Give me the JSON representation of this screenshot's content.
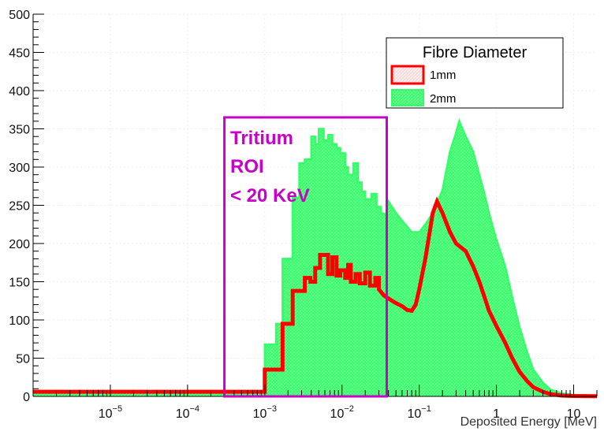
{
  "chart_data": {
    "type": "histogram",
    "title": "",
    "xlabel": "Deposited Energy [MeV]",
    "ylabel": "",
    "x_scale": "log",
    "xlim": [
      1e-06,
      20
    ],
    "ylim": [
      0,
      500
    ],
    "grid": true,
    "x_tick_labels": [
      {
        "value": 1e-05,
        "base": "10",
        "exp": "−5"
      },
      {
        "value": 0.0001,
        "base": "10",
        "exp": "−4"
      },
      {
        "value": 0.001,
        "base": "10",
        "exp": "−3"
      },
      {
        "value": 0.01,
        "base": "10",
        "exp": "−2"
      },
      {
        "value": 0.1,
        "base": "10",
        "exp": "−1"
      },
      {
        "value": 1,
        "base": "1",
        "exp": ""
      },
      {
        "value": 10,
        "base": "10",
        "exp": ""
      }
    ],
    "y_ticks": [
      0,
      50,
      100,
      150,
      200,
      250,
      300,
      350,
      400,
      450,
      500
    ],
    "legend": {
      "title": "Fibre Diameter",
      "position": "top-right",
      "entries": [
        "1mm",
        "2mm"
      ]
    },
    "series": [
      {
        "name": "1mm",
        "color": "#ff0000",
        "style": "thick line band",
        "points": [
          [
            1e-06,
            6
          ],
          [
            0.001,
            6
          ],
          [
            0.001,
            35
          ],
          [
            0.0017,
            35
          ],
          [
            0.0017,
            95
          ],
          [
            0.0023,
            95
          ],
          [
            0.0023,
            138
          ],
          [
            0.0033,
            138
          ],
          [
            0.0033,
            155
          ],
          [
            0.0039,
            155
          ],
          [
            0.0039,
            150
          ],
          [
            0.0045,
            150
          ],
          [
            0.0045,
            168
          ],
          [
            0.0052,
            168
          ],
          [
            0.0052,
            185
          ],
          [
            0.0066,
            185
          ],
          [
            0.0066,
            160
          ],
          [
            0.0075,
            160
          ],
          [
            0.0075,
            182
          ],
          [
            0.0085,
            182
          ],
          [
            0.0085,
            158
          ],
          [
            0.0095,
            158
          ],
          [
            0.0095,
            165
          ],
          [
            0.011,
            165
          ],
          [
            0.011,
            155
          ],
          [
            0.012,
            155
          ],
          [
            0.012,
            172
          ],
          [
            0.013,
            172
          ],
          [
            0.013,
            150
          ],
          [
            0.015,
            150
          ],
          [
            0.015,
            160
          ],
          [
            0.017,
            160
          ],
          [
            0.017,
            148
          ],
          [
            0.02,
            148
          ],
          [
            0.02,
            162
          ],
          [
            0.023,
            162
          ],
          [
            0.023,
            145
          ],
          [
            0.027,
            145
          ],
          [
            0.027,
            155
          ],
          [
            0.03,
            155
          ],
          [
            0.03,
            140
          ],
          [
            0.035,
            132
          ],
          [
            0.04,
            128
          ],
          [
            0.05,
            122
          ],
          [
            0.06,
            118
          ],
          [
            0.07,
            113
          ],
          [
            0.08,
            112
          ],
          [
            0.09,
            120
          ],
          [
            0.1,
            140
          ],
          [
            0.12,
            180
          ],
          [
            0.15,
            240
          ],
          [
            0.17,
            255
          ],
          [
            0.2,
            240
          ],
          [
            0.25,
            215
          ],
          [
            0.3,
            200
          ],
          [
            0.4,
            190
          ],
          [
            0.5,
            170
          ],
          [
            0.6,
            150
          ],
          [
            0.7,
            130
          ],
          [
            0.8,
            112
          ],
          [
            1,
            92
          ],
          [
            1.3,
            70
          ],
          [
            1.6,
            50
          ],
          [
            2,
            32
          ],
          [
            2.5,
            20
          ],
          [
            3,
            12
          ],
          [
            4,
            6
          ],
          [
            5,
            3
          ],
          [
            7,
            1
          ],
          [
            10,
            0.5
          ],
          [
            20,
            0.3
          ]
        ]
      },
      {
        "name": "2mm",
        "color": "#33ff66",
        "style": "filled hatched",
        "points": [
          [
            1e-06,
            7
          ],
          [
            0.001,
            7
          ],
          [
            0.001,
            68
          ],
          [
            0.0014,
            68
          ],
          [
            0.0014,
            95
          ],
          [
            0.0017,
            95
          ],
          [
            0.0017,
            180
          ],
          [
            0.0023,
            180
          ],
          [
            0.0023,
            260
          ],
          [
            0.0028,
            260
          ],
          [
            0.0028,
            305
          ],
          [
            0.0033,
            305
          ],
          [
            0.0033,
            310
          ],
          [
            0.004,
            310
          ],
          [
            0.004,
            340
          ],
          [
            0.0045,
            340
          ],
          [
            0.0045,
            330
          ],
          [
            0.005,
            330
          ],
          [
            0.005,
            350
          ],
          [
            0.0058,
            350
          ],
          [
            0.0058,
            335
          ],
          [
            0.0066,
            335
          ],
          [
            0.0066,
            342
          ],
          [
            0.0075,
            342
          ],
          [
            0.0075,
            330
          ],
          [
            0.0085,
            330
          ],
          [
            0.0085,
            325
          ],
          [
            0.0095,
            325
          ],
          [
            0.0095,
            318
          ],
          [
            0.011,
            318
          ],
          [
            0.011,
            300
          ],
          [
            0.012,
            300
          ],
          [
            0.012,
            290
          ],
          [
            0.014,
            290
          ],
          [
            0.014,
            305
          ],
          [
            0.016,
            305
          ],
          [
            0.016,
            280
          ],
          [
            0.018,
            280
          ],
          [
            0.018,
            268
          ],
          [
            0.02,
            268
          ],
          [
            0.02,
            258
          ],
          [
            0.024,
            258
          ],
          [
            0.024,
            265
          ],
          [
            0.028,
            265
          ],
          [
            0.028,
            248
          ],
          [
            0.032,
            248
          ],
          [
            0.032,
            240
          ],
          [
            0.037,
            238
          ],
          [
            0.04,
            255
          ],
          [
            0.05,
            240
          ],
          [
            0.06,
            230
          ],
          [
            0.07,
            222
          ],
          [
            0.08,
            215
          ],
          [
            0.1,
            215
          ],
          [
            0.12,
            225
          ],
          [
            0.15,
            240
          ],
          [
            0.2,
            270
          ],
          [
            0.25,
            320
          ],
          [
            0.3,
            345
          ],
          [
            0.33,
            360
          ],
          [
            0.4,
            340
          ],
          [
            0.5,
            320
          ],
          [
            0.6,
            290
          ],
          [
            0.7,
            265
          ],
          [
            0.8,
            240
          ],
          [
            1,
            205
          ],
          [
            1.3,
            170
          ],
          [
            1.6,
            130
          ],
          [
            2,
            90
          ],
          [
            2.5,
            58
          ],
          [
            3,
            35
          ],
          [
            4,
            18
          ],
          [
            5,
            9
          ],
          [
            7,
            4
          ],
          [
            10,
            2
          ],
          [
            20,
            1
          ]
        ]
      }
    ],
    "annotations": [
      {
        "text": "Tritium"
      },
      {
        "text": "ROI"
      },
      {
        "text": "< 20 KeV"
      }
    ],
    "roi": {
      "x_range": [
        0.0003,
        0.038
      ],
      "y_range": [
        0,
        365
      ],
      "color": "#c800c8"
    }
  }
}
